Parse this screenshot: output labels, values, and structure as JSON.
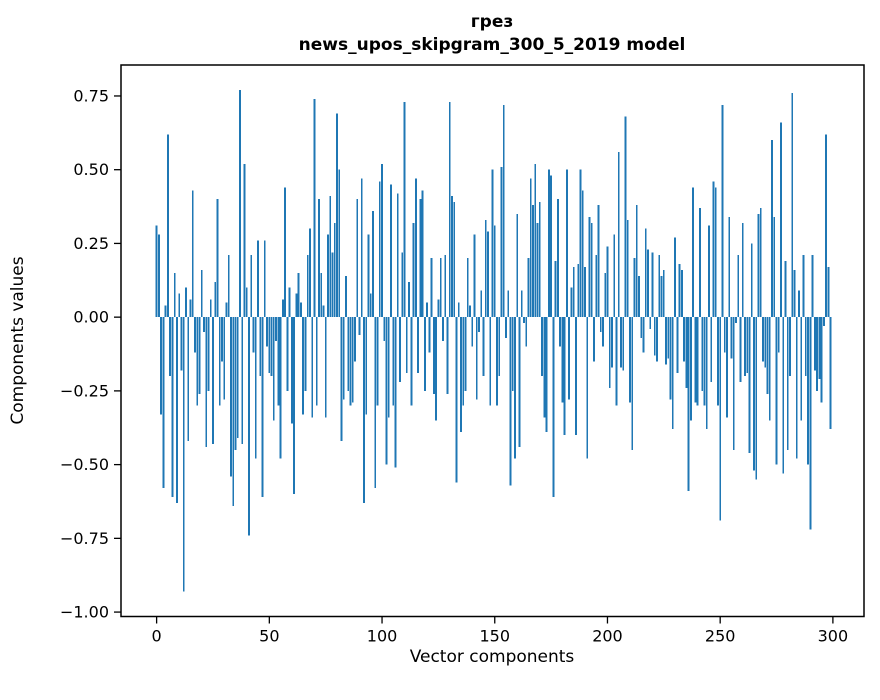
{
  "chart_data": {
    "type": "bar",
    "title_line1": "грез",
    "title_line2": "news_upos_skipgram_300_5_2019 model",
    "xlabel": "Vector components",
    "ylabel": "Components values",
    "bar_color": "#1f77b4",
    "axis_color": "#000000",
    "background_color": "#ffffff",
    "n_components": 300,
    "xlim": [
      -15.8,
      313.8
    ],
    "ylim": [
      -1.015,
      0.855
    ],
    "x_ticks": [
      0,
      50,
      100,
      150,
      200,
      250,
      300
    ],
    "x_tick_labels": [
      "0",
      "50",
      "100",
      "150",
      "200",
      "250",
      "300"
    ],
    "y_ticks": [
      0.75,
      0.5,
      0.25,
      0.0,
      -0.25,
      -0.5,
      -0.75,
      -1.0
    ],
    "y_tick_labels": [
      "0.75",
      "0.50",
      "0.25",
      "0.00",
      "−0.25",
      "−0.50",
      "−0.75",
      "−1.00"
    ],
    "grid": false,
    "legend": null,
    "values": [
      0.31,
      0.28,
      -0.33,
      -0.58,
      0.04,
      0.62,
      -0.2,
      -0.61,
      0.15,
      -0.63,
      0.08,
      -0.18,
      -0.93,
      0.1,
      -0.42,
      0.06,
      0.43,
      -0.12,
      -0.3,
      -0.26,
      0.16,
      -0.05,
      -0.44,
      -0.25,
      0.06,
      -0.43,
      0.12,
      0.4,
      -0.3,
      -0.15,
      -0.28,
      0.05,
      0.21,
      -0.54,
      -0.64,
      -0.45,
      -0.41,
      0.77,
      -0.43,
      0.52,
      0.1,
      -0.74,
      0.21,
      -0.12,
      -0.48,
      0.26,
      -0.2,
      -0.61,
      0.26,
      -0.1,
      -0.19,
      -0.2,
      -0.35,
      -0.08,
      -0.3,
      -0.48,
      0.06,
      0.44,
      -0.25,
      0.1,
      -0.36,
      -0.6,
      0.08,
      0.15,
      0.05,
      -0.33,
      -0.25,
      0.21,
      0.3,
      -0.34,
      0.74,
      -0.3,
      0.4,
      0.15,
      0.04,
      -0.34,
      0.28,
      0.41,
      0.22,
      0.32,
      0.69,
      0.5,
      -0.42,
      -0.28,
      0.14,
      -0.25,
      -0.3,
      -0.29,
      -0.15,
      0.4,
      -0.06,
      0.47,
      -0.63,
      -0.33,
      0.28,
      0.08,
      0.36,
      -0.58,
      -0.3,
      0.46,
      0.52,
      -0.08,
      -0.5,
      -0.34,
      0.45,
      -0.3,
      -0.51,
      0.42,
      -0.22,
      0.22,
      0.73,
      -0.19,
      0.12,
      -0.3,
      0.32,
      0.47,
      -0.19,
      0.4,
      0.43,
      -0.25,
      0.05,
      -0.12,
      0.2,
      -0.26,
      -0.35,
      0.06,
      0.2,
      -0.08,
      0.21,
      -0.26,
      0.73,
      0.41,
      0.39,
      -0.56,
      0.05,
      -0.39,
      -0.3,
      -0.25,
      0.2,
      0.04,
      -0.1,
      0.28,
      -0.28,
      -0.05,
      0.09,
      -0.2,
      0.33,
      0.29,
      -0.3,
      0.5,
      0.31,
      -0.3,
      -0.2,
      0.51,
      0.72,
      -0.07,
      0.09,
      -0.57,
      -0.25,
      -0.48,
      0.35,
      -0.44,
      0.09,
      -0.02,
      -0.1,
      0.2,
      0.47,
      0.38,
      0.52,
      0.32,
      0.39,
      -0.2,
      -0.34,
      -0.39,
      0.5,
      0.48,
      -0.61,
      0.19,
      0.4,
      -0.1,
      -0.29,
      -0.4,
      0.5,
      -0.28,
      0.1,
      0.17,
      -0.4,
      0.18,
      0.5,
      0.43,
      0.17,
      -0.48,
      0.34,
      0.32,
      -0.15,
      0.21,
      0.38,
      -0.05,
      -0.1,
      0.15,
      0.24,
      -0.24,
      -0.17,
      0.28,
      -0.3,
      0.56,
      -0.17,
      -0.18,
      0.68,
      0.33,
      -0.29,
      -0.45,
      0.2,
      0.38,
      0.14,
      -0.07,
      -0.12,
      0.3,
      0.23,
      -0.04,
      0.22,
      -0.13,
      -0.15,
      0.21,
      0.14,
      0.16,
      -0.16,
      -0.14,
      -0.28,
      -0.38,
      0.27,
      -0.19,
      0.18,
      0.16,
      -0.15,
      -0.24,
      -0.59,
      -0.35,
      0.44,
      -0.29,
      -0.3,
      0.37,
      -0.25,
      -0.3,
      -0.38,
      0.31,
      -0.22,
      0.46,
      0.44,
      -0.3,
      -0.69,
      0.72,
      -0.12,
      -0.34,
      0.34,
      -0.14,
      -0.45,
      -0.02,
      0.21,
      -0.22,
      0.32,
      -0.2,
      -0.19,
      -0.46,
      0.25,
      -0.52,
      -0.55,
      0.35,
      0.37,
      -0.15,
      -0.17,
      -0.26,
      -0.35,
      0.6,
      0.34,
      -0.5,
      -0.12,
      0.66,
      -0.53,
      0.19,
      -0.45,
      -0.2,
      0.76,
      0.16,
      -0.48,
      0.09,
      -0.35,
      0.21,
      -0.2,
      -0.5,
      -0.72,
      0.21,
      -0.18,
      -0.25,
      -0.21,
      -0.29,
      -0.03,
      0.62,
      0.17,
      -0.38
    ]
  }
}
